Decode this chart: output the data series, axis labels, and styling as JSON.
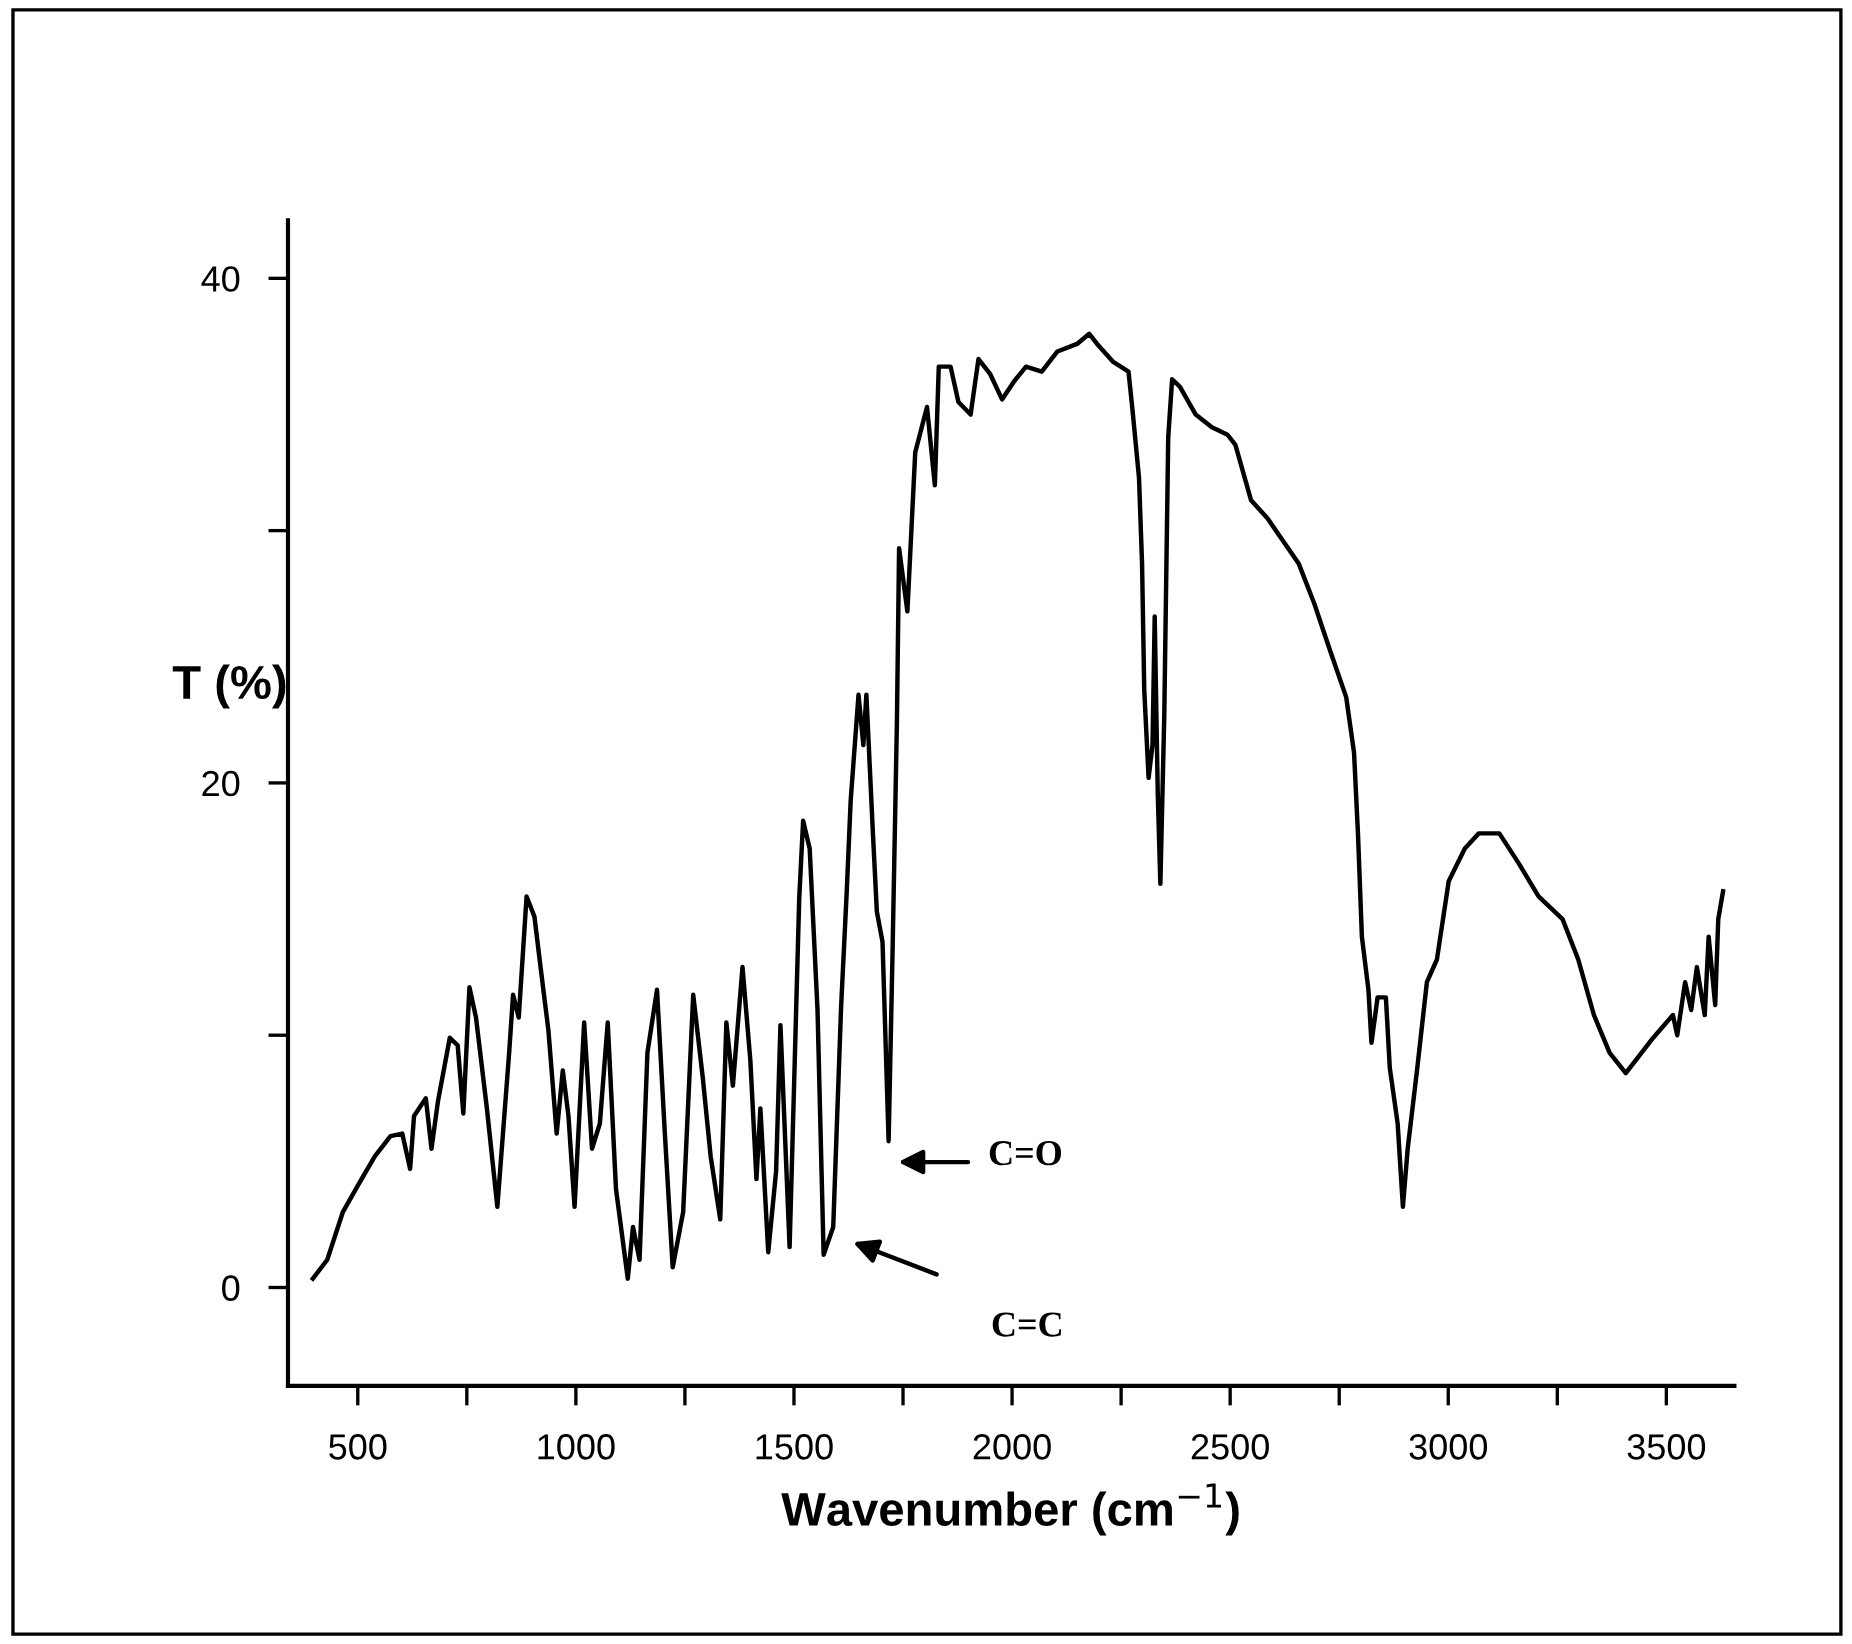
{
  "chart_data": {
    "type": "line",
    "xlabel": "Wavenumber (cm$^{−1}$)",
    "ylabel": "T (%)",
    "xlim": [
      340,
      3656
    ],
    "ylim": [
      -3.9,
      42.3
    ],
    "xticks": [
      500,
      {
        "value": 750,
        "label": null
      },
      1000,
      {
        "value": 1250,
        "label": null
      },
      1500,
      {
        "value": 1750,
        "label": null
      },
      2000,
      {
        "value": 2250,
        "label": null
      },
      2500,
      {
        "value": 2750,
        "label": null
      },
      3000,
      {
        "value": 3250,
        "label": null
      },
      3500
    ],
    "yticks": [
      0,
      {
        "value": 10,
        "label": null
      },
      20,
      {
        "value": 30,
        "label": null
      },
      40
    ],
    "grid": false,
    "legend": false,
    "marker": "none",
    "line_style": "solid",
    "annotations": [
      "C=O",
      "C=C"
    ],
    "series": [
      {
        "color": "#000000",
        "x": [
          397,
          430,
          466,
          502,
          539,
          575,
          602,
          620,
          629,
          656,
          669,
          684,
          711,
          729,
          742,
          756,
          771,
          796,
          820,
          847,
          856,
          869,
          887,
          905,
          919,
          937,
          956,
          970,
          983,
          997,
          1019,
          1037,
          1055,
          1073,
          1092,
          1119,
          1131,
          1146,
          1164,
          1186,
          1204,
          1222,
          1246,
          1269,
          1291,
          1309,
          1331,
          1345,
          1360,
          1382,
          1400,
          1414,
          1423,
          1441,
          1459,
          1469,
          1490,
          1512,
          1521,
          1536,
          1554,
          1568,
          1590,
          1608,
          1621,
          1630,
          1648,
          1659,
          1666,
          1681,
          1690,
          1703,
          1717,
          1726,
          1736,
          1741,
          1760,
          1778,
          1787,
          1805,
          1823,
          1832,
          1859,
          1877,
          1905,
          1923,
          1950,
          1977,
          2004,
          2032,
          2068,
          2104,
          2149,
          2177,
          2195,
          2231,
          2267,
          2276,
          2291,
          2298,
          2303,
          2313,
          2322,
          2327,
          2334,
          2340,
          2349,
          2358,
          2367,
          2385,
          2421,
          2458,
          2494,
          2512,
          2548,
          2585,
          2621,
          2657,
          2693,
          2730,
          2766,
          2784,
          2793,
          2802,
          2817,
          2824,
          2838,
          2857,
          2866,
          2884,
          2896,
          2907,
          2929,
          2951,
          2974,
          3001,
          3038,
          3070,
          3089,
          3117,
          3162,
          3207,
          3262,
          3298,
          3334,
          3370,
          3407,
          3470,
          3515,
          3525,
          3543,
          3557,
          3570,
          3588,
          3597,
          3612,
          3619,
          3630
        ],
        "values": [
          0.35,
          1.1,
          3.0,
          4.1,
          5.2,
          6.0,
          6.1,
          4.7,
          6.8,
          7.5,
          5.5,
          7.4,
          9.9,
          9.6,
          6.9,
          11.9,
          10.7,
          7.1,
          3.2,
          9.3,
          11.6,
          10.7,
          15.5,
          14.7,
          12.7,
          10.2,
          6.1,
          8.6,
          6.8,
          3.2,
          10.5,
          5.5,
          6.5,
          10.5,
          3.9,
          0.35,
          2.4,
          1.1,
          9.3,
          11.8,
          6.1,
          0.8,
          3.0,
          11.6,
          8.3,
          5.2,
          2.7,
          10.5,
          8.0,
          12.7,
          9.0,
          4.3,
          7.1,
          1.4,
          4.6,
          10.4,
          1.6,
          15.4,
          18.5,
          17.4,
          11.0,
          1.3,
          2.4,
          11.1,
          15.7,
          19.3,
          23.5,
          21.5,
          23.5,
          18.0,
          14.9,
          13.7,
          5.8,
          13.3,
          22.4,
          29.3,
          26.8,
          33.1,
          33.7,
          34.9,
          31.8,
          36.5,
          36.5,
          35.1,
          34.6,
          36.8,
          36.2,
          35.2,
          35.9,
          36.5,
          36.3,
          37.1,
          37.4,
          37.8,
          37.4,
          36.7,
          36.3,
          34.8,
          32.1,
          28.7,
          23.7,
          20.2,
          21.5,
          26.6,
          19.6,
          16.0,
          22.7,
          33.7,
          36.0,
          35.7,
          34.6,
          34.1,
          33.8,
          33.4,
          31.2,
          30.5,
          29.6,
          28.7,
          27.1,
          25.2,
          23.4,
          21.2,
          18.0,
          13.9,
          11.8,
          9.7,
          11.5,
          11.5,
          8.7,
          6.5,
          3.2,
          5.5,
          8.7,
          12.1,
          13.0,
          16.1,
          17.4,
          18.0,
          18.0,
          18.0,
          16.8,
          15.5,
          14.6,
          13.0,
          10.8,
          9.3,
          8.5,
          9.9,
          10.8,
          10.0,
          12.1,
          11.0,
          12.7,
          10.8,
          13.9,
          11.2,
          14.6,
          15.7
        ]
      }
    ]
  }
}
